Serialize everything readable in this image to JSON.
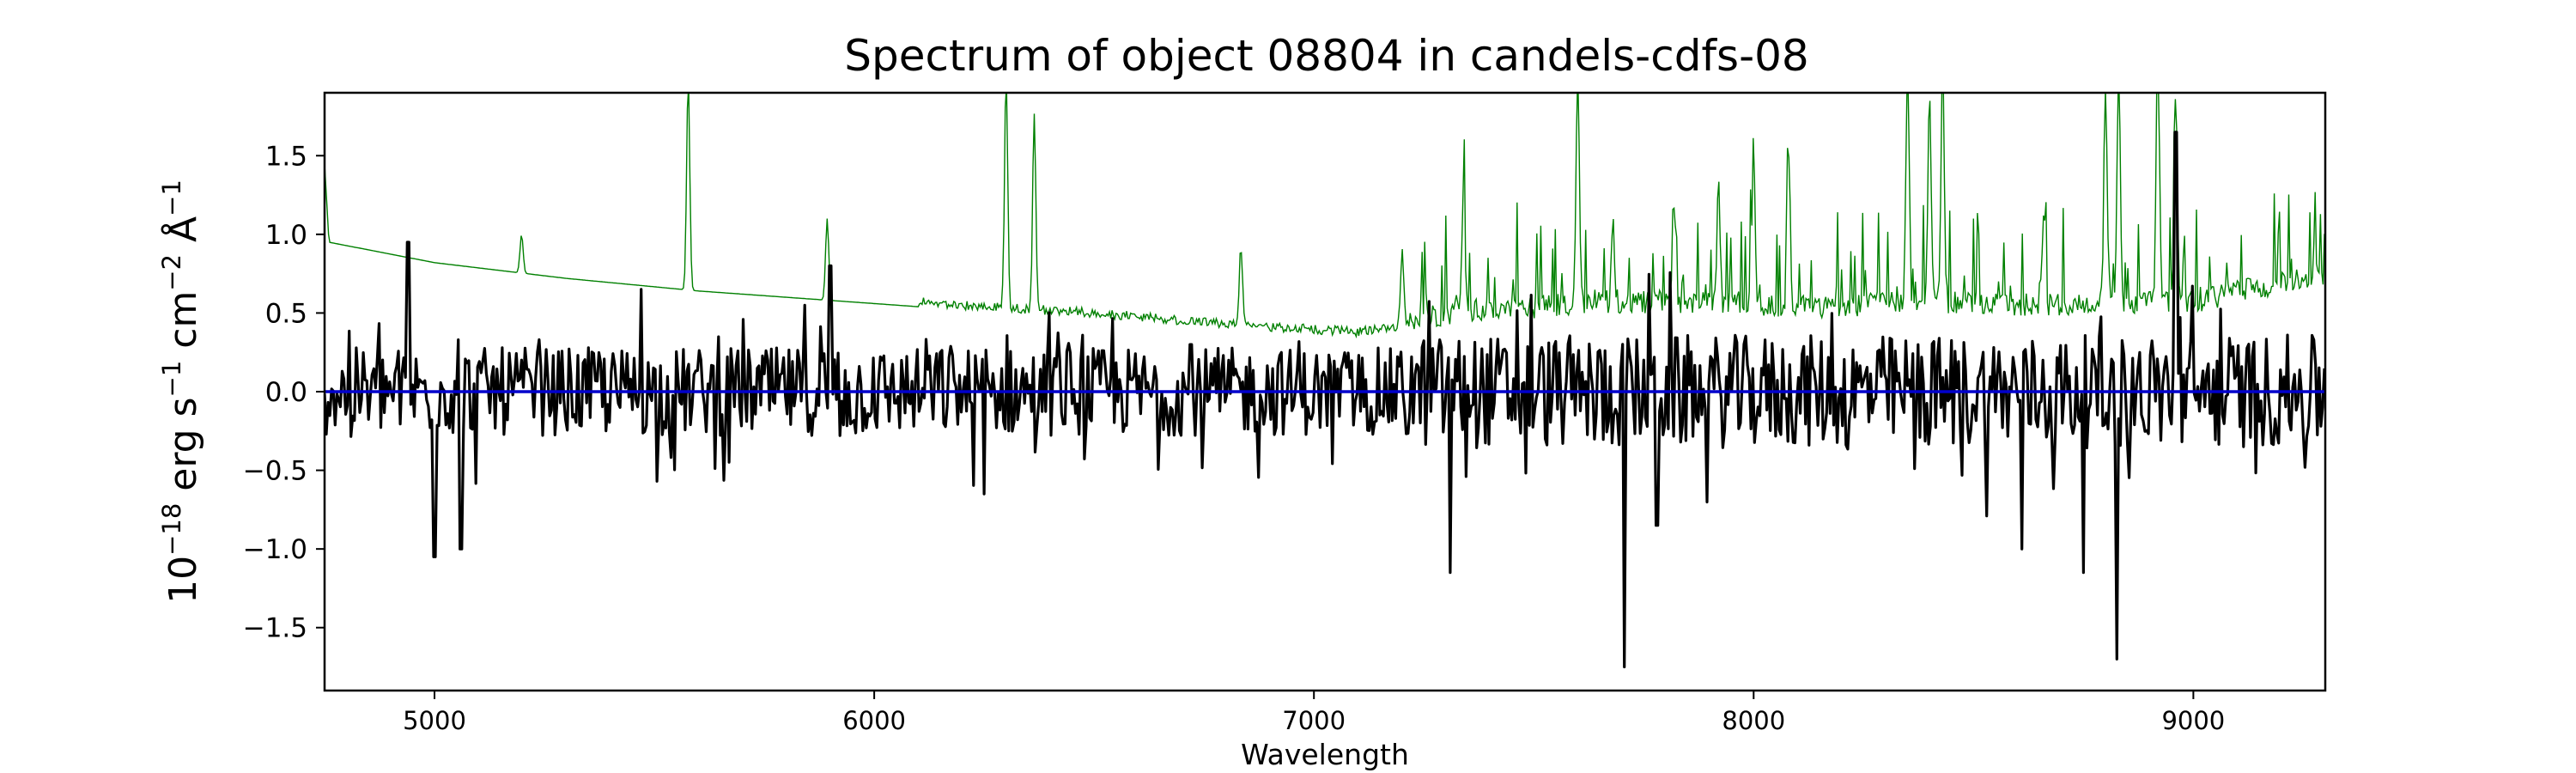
{
  "chart_data": {
    "type": "line",
    "title": "Spectrum of object 08804 in candels-cdfs-08",
    "xlabel": "Wavelength",
    "ylabel": {
      "base": "10",
      "exp1": "−18",
      "p1": " erg s",
      "exp2": "−1",
      "p2": " cm",
      "exp3": "−2",
      "p3": " Å",
      "exp4": "−1"
    },
    "xlim": [
      4750,
      9300
    ],
    "ylim": [
      -1.9,
      1.9
    ],
    "xticks": [
      5000,
      6000,
      7000,
      8000,
      9000
    ],
    "xtick_labels": [
      "5000",
      "6000",
      "7000",
      "8000",
      "9000"
    ],
    "yticks": [
      -1.5,
      -1.0,
      -0.5,
      0.0,
      0.5,
      1.0,
      1.5
    ],
    "ytick_labels": [
      "−1.5",
      "−1.0",
      "−0.5",
      "0.0",
      "0.5",
      "1.0",
      "1.5"
    ],
    "grid": false,
    "series": [
      {
        "color": "#008000",
        "stroke": "thin",
        "continuum": [
          [
            4750,
            1.45
          ],
          [
            4760,
            0.95
          ],
          [
            5000,
            0.82
          ],
          [
            5300,
            0.72
          ],
          [
            5600,
            0.64
          ],
          [
            5900,
            0.58
          ],
          [
            6200,
            0.52
          ],
          [
            6500,
            0.47
          ],
          [
            6800,
            0.4
          ],
          [
            7100,
            0.35
          ],
          [
            7250,
            0.4
          ],
          [
            7400,
            0.45
          ],
          [
            7700,
            0.5
          ],
          [
            8000,
            0.48
          ],
          [
            8200,
            0.46
          ],
          [
            8300,
            0.5
          ],
          [
            8600,
            0.48
          ],
          [
            8750,
            0.47
          ],
          [
            9000,
            0.5
          ],
          [
            9300,
            0.68
          ]
        ],
        "peaks": [
          [
            5198,
            1.0
          ],
          [
            5577,
            2.0
          ],
          [
            5893,
            1.1
          ],
          [
            6300,
            2.0
          ],
          [
            6364,
            1.75
          ],
          [
            6834,
            0.9
          ],
          [
            7200,
            0.8
          ],
          [
            7340,
            1.2
          ],
          [
            7600,
            2.0
          ],
          [
            7680,
            1.0
          ],
          [
            7820,
            1.1
          ],
          [
            7920,
            1.3
          ],
          [
            8000,
            1.5
          ],
          [
            8080,
            1.4
          ],
          [
            8350,
            2.0
          ],
          [
            8400,
            1.8
          ],
          [
            8430,
            2.0
          ],
          [
            8660,
            1.1
          ],
          [
            8800,
            1.9
          ],
          [
            8830,
            2.0
          ],
          [
            8920,
            2.0
          ],
          [
            8960,
            1.8
          ]
        ]
      },
      {
        "color": "#000000",
        "stroke": "thick",
        "extremes": [
          [
            4940,
            0.95
          ],
          [
            5000,
            -1.05
          ],
          [
            5060,
            -1.0
          ],
          [
            5470,
            0.65
          ],
          [
            5900,
            0.8
          ],
          [
            6250,
            -0.65
          ],
          [
            6720,
            0.3
          ],
          [
            7310,
            -1.15
          ],
          [
            7705,
            -1.75
          ],
          [
            7780,
            -0.85
          ],
          [
            8610,
            -1.0
          ],
          [
            8750,
            -1.15
          ],
          [
            8825,
            -1.7
          ],
          [
            8960,
            1.65
          ]
        ]
      },
      {
        "color": "#0000cc",
        "stroke": "medium",
        "values": [
          [
            4750,
            0.0
          ],
          [
            9300,
            0.0
          ]
        ]
      }
    ]
  }
}
